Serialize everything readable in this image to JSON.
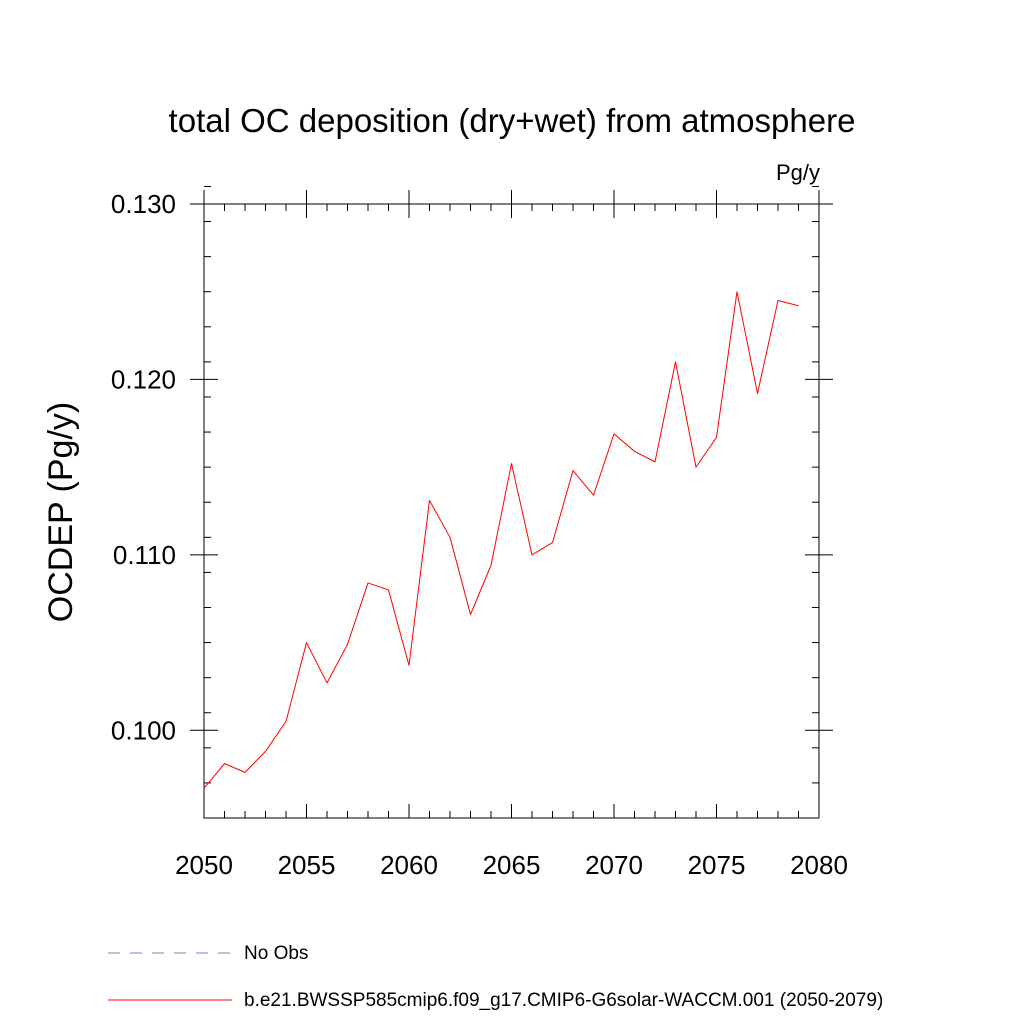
{
  "chart_data": {
    "type": "line",
    "title": "total OC deposition (dry+wet) from atmosphere",
    "units_label": "Pg/y",
    "xlabel": "",
    "ylabel": "OCDEP  (Pg/y)",
    "xlim": [
      2050,
      2080
    ],
    "ylim": [
      0.095,
      0.13
    ],
    "x_major_ticks": [
      2050,
      2055,
      2060,
      2065,
      2070,
      2075,
      2080
    ],
    "x_tick_labels": [
      "2050",
      "2055",
      "2060",
      "2065",
      "2070",
      "2075",
      "2080"
    ],
    "x_minor_step": 1,
    "y_major_ticks": [
      0.1,
      0.11,
      0.12,
      0.13
    ],
    "y_tick_labels": [
      "0.100",
      "0.110",
      "0.120",
      "0.130"
    ],
    "y_minor_step": 0.002,
    "grid": false,
    "series": [
      {
        "name": "b.e21.BWSSP585cmip6.f09_g17.CMIP6-G6solar-WACCM.001 (2050-2079)",
        "color": "#ff0000",
        "style": "solid",
        "x": [
          2050,
          2051,
          2052,
          2053,
          2054,
          2055,
          2056,
          2057,
          2058,
          2059,
          2060,
          2061,
          2062,
          2063,
          2064,
          2065,
          2066,
          2067,
          2068,
          2069,
          2070,
          2071,
          2072,
          2073,
          2074,
          2075,
          2076,
          2077,
          2078,
          2079
        ],
        "values": [
          0.0967,
          0.0981,
          0.0976,
          0.0988,
          0.1005,
          0.105,
          0.1027,
          0.1049,
          0.1084,
          0.108,
          0.1037,
          0.1131,
          0.111,
          0.1066,
          0.1094,
          0.1152,
          0.11,
          0.1107,
          0.1148,
          0.1134,
          0.1169,
          0.1159,
          0.1153,
          0.121,
          0.115,
          0.1167,
          0.125,
          0.1192,
          0.1245,
          0.1242
        ]
      }
    ],
    "legend": [
      {
        "label": "No Obs",
        "color": "#8877bb",
        "style": "dashed"
      },
      {
        "label": "b.e21.BWSSP585cmip6.f09_g17.CMIP6-G6solar-WACCM.001 (2050-2079)",
        "color": "#ff0000",
        "style": "solid"
      }
    ]
  }
}
